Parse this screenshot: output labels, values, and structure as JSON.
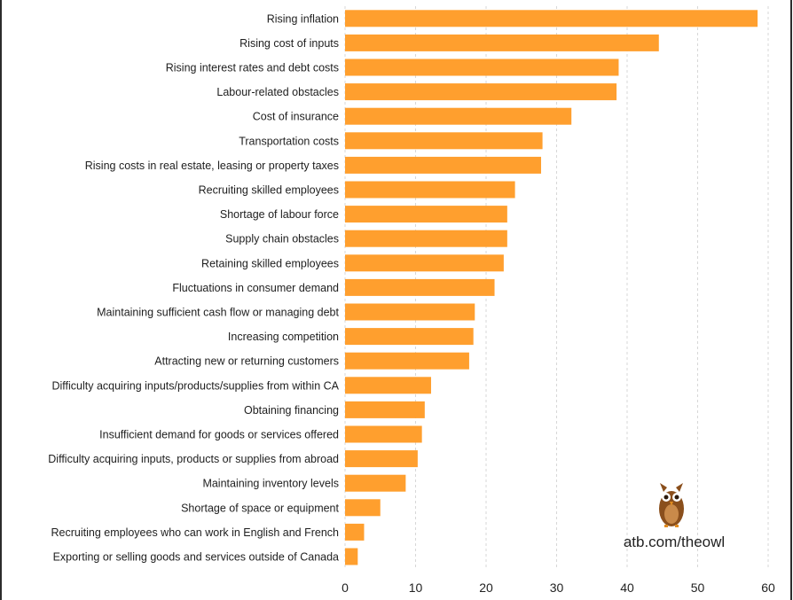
{
  "chart_data": {
    "type": "bar",
    "orientation": "horizontal",
    "categories": [
      "Rising inflation",
      "Rising cost of inputs",
      "Rising interest rates and debt costs",
      "Labour-related obstacles",
      "Cost of insurance",
      "Transportation costs",
      "Rising costs in real estate, leasing or property taxes",
      "Recruiting skilled employees",
      "Shortage of labour force",
      "Supply chain obstacles",
      "Retaining skilled employees",
      "Fluctuations in consumer demand",
      "Maintaining sufficient cash flow or managing debt",
      "Increasing competition",
      "Attracting new or returning customers",
      "Difficulty acquiring inputs/products/supplies from within CA",
      "Obtaining financing",
      "Insufficient demand for goods or services offered",
      "Difficulty acquiring inputs, products or supplies from abroad",
      "Maintaining inventory levels",
      "Shortage of space or equipment",
      "Recruiting employees who can work in English and French",
      "Exporting or selling goods and services outside of Canada"
    ],
    "values": [
      58.5,
      44.5,
      38.8,
      38.5,
      32.1,
      28.0,
      27.8,
      24.1,
      23.0,
      23.0,
      22.5,
      21.2,
      18.4,
      18.2,
      17.6,
      12.2,
      11.3,
      10.9,
      10.3,
      8.6,
      5.0,
      2.7,
      1.8
    ],
    "xlim": [
      0,
      60
    ],
    "xticks": [
      "0",
      "10",
      "20",
      "30",
      "40",
      "50",
      "60"
    ],
    "grid": "vertical dashed",
    "bar_color": "#ff9f2e",
    "title": "",
    "xlabel": "",
    "ylabel": ""
  },
  "branding": {
    "url_text": "atb.com/theowl",
    "mascot_icon": "owl-icon"
  }
}
